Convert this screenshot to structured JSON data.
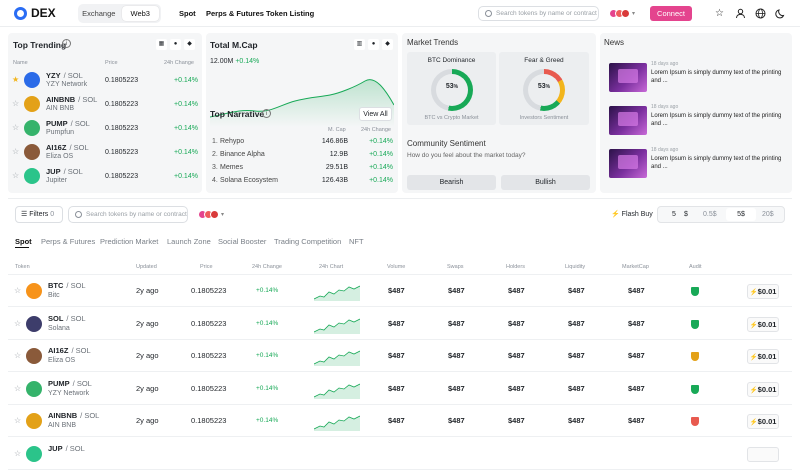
{
  "header": {
    "logo": "DEX",
    "mode_tabs": [
      "Exchange",
      "Web3"
    ],
    "active_mode": "Web3",
    "nav": [
      "Spot",
      "Perps & Futures",
      "Token Listing"
    ],
    "search_placeholder": "Search tokens by name or contract",
    "connect": "Connect"
  },
  "trending": {
    "title": "Top Trending",
    "cols": [
      "Name",
      "Price",
      "24h Change"
    ],
    "rows": [
      {
        "sym": "YZY",
        "chain": "/ SOL",
        "name": "YZY Network",
        "price": "0.1805223",
        "chg": "+0.14%",
        "starred": true,
        "color": "#2b6be8"
      },
      {
        "sym": "AINBNB",
        "chain": "/ SOL",
        "name": "AIN BNB",
        "price": "0.1805223",
        "chg": "+0.14%",
        "starred": false,
        "color": "#e3a118"
      },
      {
        "sym": "PUMP",
        "chain": "/ SOL",
        "name": "Pumpfun",
        "price": "0.1805223",
        "chg": "+0.14%",
        "starred": false,
        "color": "#35b36b"
      },
      {
        "sym": "AI16Z",
        "chain": "/ SOL",
        "name": "Eliza OS",
        "price": "0.1805223",
        "chg": "+0.14%",
        "starred": false,
        "color": "#8a5a3a"
      },
      {
        "sym": "JUP",
        "chain": "/ SOL",
        "name": "Jupiter",
        "price": "0.1805223",
        "chg": "+0.14%",
        "starred": false,
        "color": "#2bc48a"
      }
    ]
  },
  "mcap": {
    "title": "Total M.Cap",
    "value": "12.00M",
    "chg": "+0.14%"
  },
  "narrative": {
    "title": "Top Narrative",
    "view_all": "View All",
    "cols": [
      "M. Cap",
      "24h Change"
    ],
    "rows": [
      {
        "n": "1.",
        "name": "Rehypo",
        "cap": "146.86B",
        "chg": "+0.14%"
      },
      {
        "n": "2.",
        "name": "Binance Alpha",
        "cap": "12.9B",
        "chg": "+0.14%"
      },
      {
        "n": "3.",
        "name": "Memes",
        "cap": "29.51B",
        "chg": "+0.14%"
      },
      {
        "n": "4.",
        "name": "Solana Ecosystem",
        "cap": "126.43B",
        "chg": "+0.14%"
      }
    ]
  },
  "trends": {
    "title": "Market Trends",
    "btc": {
      "title": "BTC Dominance",
      "value": "53",
      "unit": "%",
      "caption": "BTC vs Crypto Market",
      "level": 0.53
    },
    "fng": {
      "title": "Fear & Greed",
      "value": "53",
      "unit": "%",
      "caption": "Investors Sentiment",
      "level": 0.53
    }
  },
  "sentiment": {
    "title": "Community Sentiment",
    "question": "How do you feel about the market today?",
    "bearish": "Bearish",
    "bullish": "Bullish"
  },
  "news": {
    "title": "News",
    "items": [
      {
        "date": "18 days ago",
        "text": "Lorem Ipsum is simply dummy text of the printing and ..."
      },
      {
        "date": "18 days ago",
        "text": "Lorem Ipsum is simply dummy text of the printing and ..."
      },
      {
        "date": "18 days ago",
        "text": "Lorem Ipsum is simply dummy text of the printing and ..."
      }
    ]
  },
  "filters": {
    "label": "Filters",
    "count": "0",
    "search_placeholder": "Search tokens by name or contract",
    "flash_buy": "Flash Buy",
    "amount": "5",
    "currency": "$",
    "presets": [
      "0.5$",
      "5$",
      "20$"
    ],
    "active_preset": "5$"
  },
  "tabs": [
    "Spot",
    "Perps & Futures",
    "Prediction Market",
    "Launch Zone",
    "Social Booster",
    "Trading Competition",
    "NFT"
  ],
  "table": {
    "headers": [
      "Token",
      "Updated",
      "Price",
      "24h Change",
      "24h Chart",
      "Volume",
      "Swaps",
      "Holders",
      "Liquidity",
      "MarketCap",
      "Audit"
    ],
    "rows": [
      {
        "sym": "BTC",
        "chain": "/ SOL",
        "name": "Bitc",
        "updated": "2y ago",
        "price": "0.1805223",
        "chg": "+0.14%",
        "vol": "$487",
        "swaps": "$487",
        "holders": "$487",
        "liq": "$487",
        "mcap": "$487",
        "audit": "green",
        "fee": "$0.01",
        "color": "#f7931a"
      },
      {
        "sym": "SOL",
        "chain": "/ SOL",
        "name": "Solana",
        "updated": "2y ago",
        "price": "0.1805223",
        "chg": "+0.14%",
        "vol": "$487",
        "swaps": "$487",
        "holders": "$487",
        "liq": "$487",
        "mcap": "$487",
        "audit": "green",
        "fee": "$0.01",
        "color": "#3d3d6b"
      },
      {
        "sym": "AI16Z",
        "chain": "/ SOL",
        "name": "Eliza OS",
        "updated": "2y ago",
        "price": "0.1805223",
        "chg": "+0.14%",
        "vol": "$487",
        "swaps": "$487",
        "holders": "$487",
        "liq": "$487",
        "mcap": "$487",
        "audit": "yellow",
        "fee": "$0.01",
        "color": "#8a5a3a"
      },
      {
        "sym": "PUMP",
        "chain": "/ SOL",
        "name": "YZY Network",
        "updated": "2y ago",
        "price": "0.1805223",
        "chg": "+0.14%",
        "vol": "$487",
        "swaps": "$487",
        "holders": "$487",
        "liq": "$487",
        "mcap": "$487",
        "audit": "green",
        "fee": "$0.01",
        "color": "#35b36b"
      },
      {
        "sym": "AINBNB",
        "chain": "/ SOL",
        "name": "AIN BNB",
        "updated": "2y ago",
        "price": "0.1805223",
        "chg": "+0.14%",
        "vol": "$487",
        "swaps": "$487",
        "holders": "$487",
        "liq": "$487",
        "mcap": "$487",
        "audit": "red",
        "fee": "$0.01",
        "color": "#e3a118"
      },
      {
        "sym": "JUP",
        "chain": "/ SOL",
        "name": "",
        "updated": "",
        "price": "",
        "chg": "",
        "vol": "",
        "swaps": "",
        "holders": "",
        "liq": "",
        "mcap": "",
        "audit": "",
        "fee": "",
        "color": "#2bc48a"
      }
    ]
  },
  "colors": {
    "accent": "#e4448e",
    "green": "#18a957",
    "primary": "#2a6df4"
  }
}
